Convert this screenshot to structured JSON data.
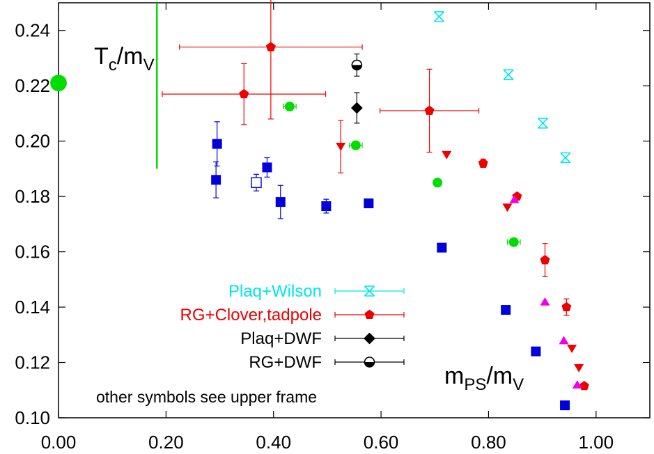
{
  "chart_data": {
    "type": "scatter",
    "xlabel": {
      "main": "m",
      "sub": "PS",
      "slash": "/m",
      "sub2": "V"
    },
    "ylabel": {
      "main": "T",
      "sub": "c",
      "slash": "/m",
      "sub2": "V"
    },
    "xlim": [
      0.0,
      1.1
    ],
    "ylim": [
      0.1,
      0.25
    ],
    "x_ticks": [
      "0.00",
      "0.20",
      "0.40",
      "0.60",
      "0.80",
      "1.00"
    ],
    "y_ticks": [
      "0.10",
      "0.12",
      "0.14",
      "0.16",
      "0.18",
      "0.20",
      "0.22",
      "0.24"
    ],
    "grid": false,
    "legend_position": "bottom-left",
    "note": "other symbols see upper frame",
    "colors": {
      "cyan": "#00e5ee",
      "red": "#ee0000",
      "black": "#000000",
      "blue": "#0000dd",
      "green": "#00dd00",
      "magenta": "#ee00ee"
    },
    "series": [
      {
        "name": "Plaq+Wilson",
        "marker": "star",
        "color": "#00e5ee",
        "legend": true,
        "points": [
          {
            "x": 0.708,
            "y": 0.245
          },
          {
            "x": 0.837,
            "y": 0.224
          },
          {
            "x": 0.901,
            "y": 0.2065
          },
          {
            "x": 0.943,
            "y": 0.194
          }
        ]
      },
      {
        "name": "RG+Clover,tadpole",
        "marker": "pentagon",
        "color": "#ee0000",
        "legend": true,
        "points": [
          {
            "x": 0.395,
            "y": 0.234,
            "xerr": 0.17,
            "yerr": 0.026
          },
          {
            "x": 0.345,
            "y": 0.217,
            "xerr": 0.152,
            "yerr": 0.011
          },
          {
            "x": 0.69,
            "y": 0.211,
            "xerr": 0.092,
            "yerr": 0.015
          },
          {
            "x": 0.79,
            "y": 0.192,
            "yerr": 0.0015
          },
          {
            "x": 0.853,
            "y": 0.18,
            "yerr": 0.001
          },
          {
            "x": 0.905,
            "y": 0.157,
            "yerr": 0.006
          },
          {
            "x": 0.945,
            "y": 0.14,
            "yerr": 0.003
          },
          {
            "x": 0.978,
            "y": 0.1115,
            "yerr": 0.001
          }
        ]
      },
      {
        "name": "Plaq+DWF",
        "marker": "diamond",
        "color": "#000000",
        "legend": true,
        "points": [
          {
            "x": 0.555,
            "y": 0.212,
            "yerr": 0.0055
          }
        ]
      },
      {
        "name": "RG+DWF",
        "marker": "half-circle",
        "color": "#000000",
        "legend": true,
        "points": [
          {
            "x": 0.555,
            "y": 0.2275,
            "yerr": 0.004
          }
        ]
      },
      {
        "name": "",
        "marker": "square",
        "color": "#0000dd",
        "legend": false,
        "points": [
          {
            "x": 0.295,
            "y": 0.199,
            "yerr": 0.008
          },
          {
            "x": 0.293,
            "y": 0.186,
            "yerr": 0.0065
          },
          {
            "x": 0.388,
            "y": 0.1905,
            "yerr": 0.0035
          },
          {
            "x": 0.413,
            "y": 0.178,
            "yerr": 0.006
          },
          {
            "x": 0.498,
            "y": 0.1765,
            "yerr": 0.0025
          },
          {
            "x": 0.577,
            "y": 0.1775
          },
          {
            "x": 0.713,
            "y": 0.1615
          },
          {
            "x": 0.832,
            "y": 0.139
          },
          {
            "x": 0.888,
            "y": 0.124
          },
          {
            "x": 0.942,
            "y": 0.1045
          }
        ]
      },
      {
        "name": "",
        "marker": "open-square",
        "color": "#0000dd",
        "legend": false,
        "points": [
          {
            "x": 0.368,
            "y": 0.185,
            "yerr": 0.003
          }
        ]
      },
      {
        "name": "",
        "marker": "circle",
        "color": "#00dd00",
        "legend": false,
        "points": [
          {
            "x": 0.43,
            "y": 0.2125,
            "xerr": 0.012
          },
          {
            "x": 0.553,
            "y": 0.1985,
            "xerr": 0.012
          },
          {
            "x": 0.705,
            "y": 0.185
          },
          {
            "x": 0.847,
            "y": 0.1635,
            "xerr": 0.012
          }
        ]
      },
      {
        "name": "",
        "marker": "big-circle",
        "color": "#00dd00",
        "legend": false,
        "points": [
          {
            "x": 0.0,
            "y": 0.221
          }
        ]
      },
      {
        "name": "",
        "marker": "triangle-down",
        "color": "#ee0000",
        "legend": false,
        "points": [
          {
            "x": 0.525,
            "y": 0.198,
            "yerr": 0.0095
          },
          {
            "x": 0.722,
            "y": 0.195
          },
          {
            "x": 0.835,
            "y": 0.176
          },
          {
            "x": 0.955,
            "y": 0.125
          },
          {
            "x": 0.968,
            "y": 0.118
          }
        ]
      },
      {
        "name": "",
        "marker": "triangle-up",
        "color": "#ee00ee",
        "legend": false,
        "points": [
          {
            "x": 0.848,
            "y": 0.179
          },
          {
            "x": 0.905,
            "y": 0.142
          },
          {
            "x": 0.94,
            "y": 0.128
          },
          {
            "x": 0.965,
            "y": 0.112
          }
        ]
      }
    ],
    "vertical_line": {
      "x": 0.183,
      "y_from": 0.19,
      "y_to": 0.25,
      "color": "#00dd00"
    }
  }
}
